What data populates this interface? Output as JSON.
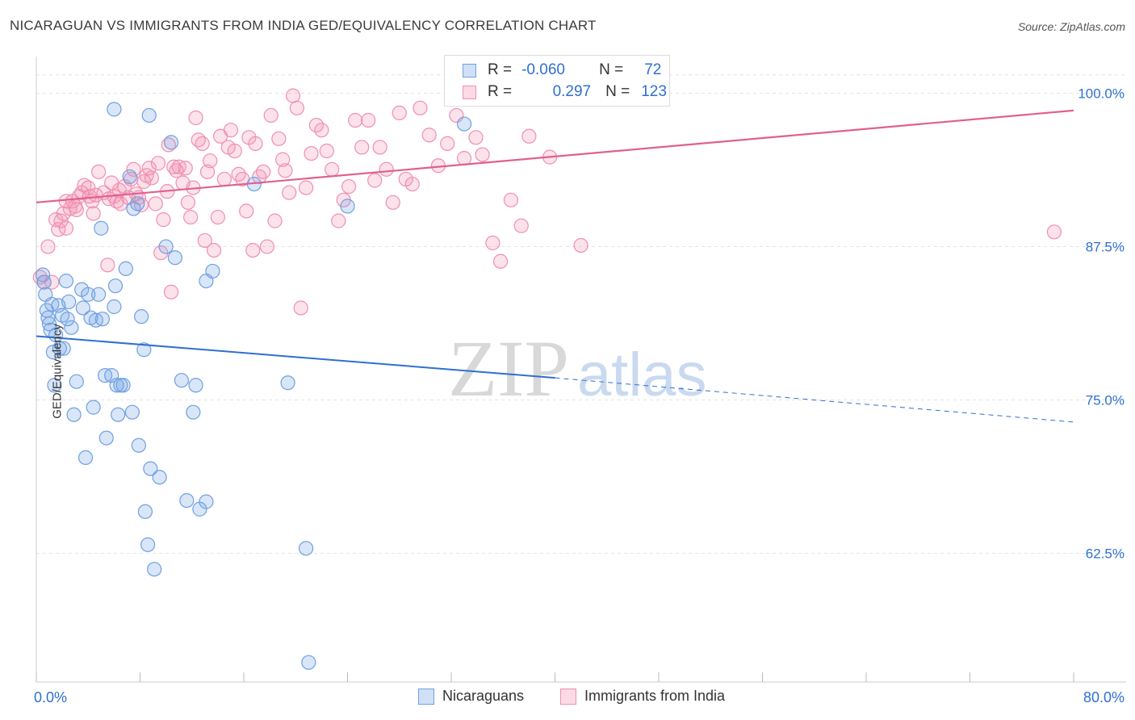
{
  "title": "NICARAGUAN VS IMMIGRANTS FROM INDIA GED/EQUIVALENCY CORRELATION CHART",
  "source": "Source: ZipAtlas.com",
  "watermark": {
    "zip": "ZIP",
    "atlas": "atlas"
  },
  "legend": {
    "row1": {
      "r_label": "R =",
      "r_value": "-0.060",
      "n_label": "N =",
      "n_value": "72"
    },
    "row2": {
      "r_label": "R =",
      "r_value": "0.297",
      "n_label": "N =",
      "n_value": "123"
    }
  },
  "bottom_legend": {
    "series1": "Nicaraguans",
    "series2": "Immigrants from India"
  },
  "colors": {
    "blue": "#6fa0e0",
    "blue_fill": "rgba(120,165,230,0.28)",
    "blue_line": "#2f6fd0",
    "pink": "#ef8fb0",
    "pink_fill": "rgba(245,150,180,0.28)",
    "pink_line": "#e0608e",
    "axis_text": "#2f6fd0"
  },
  "chart_data": {
    "type": "scatter",
    "title": "NICARAGUAN VS IMMIGRANTS FROM INDIA GED/EQUIVALENCY CORRELATION CHART",
    "xlabel": "",
    "ylabel": "GED/Equivalency",
    "xlim": [
      0,
      80
    ],
    "ylim": [
      52,
      103
    ],
    "x_tick_labels": [
      "0.0%",
      "80.0%"
    ],
    "y_ticks": [
      62.5,
      75.0,
      87.5,
      100.0
    ],
    "y_tick_labels": [
      "62.5%",
      "75.0%",
      "87.5%",
      "100.0%"
    ],
    "series": [
      {
        "name": "Nicaraguans",
        "R": -0.06,
        "N": 72,
        "trend": {
          "x0": 0,
          "y0": 80.2,
          "x1": 40,
          "y1": 76.8,
          "dashed_to_x": 80,
          "dashed_y1": 73.2
        },
        "points": [
          [
            0.5,
            85.2
          ],
          [
            0.6,
            84.6
          ],
          [
            0.7,
            83.6
          ],
          [
            0.8,
            82.3
          ],
          [
            0.9,
            81.7
          ],
          [
            1.0,
            81.2
          ],
          [
            1.1,
            80.7
          ],
          [
            1.2,
            82.8
          ],
          [
            1.3,
            78.9
          ],
          [
            1.4,
            76.2
          ],
          [
            1.5,
            80.3
          ],
          [
            1.7,
            82.7
          ],
          [
            1.8,
            79.2
          ],
          [
            2.0,
            81.9
          ],
          [
            2.1,
            79.2
          ],
          [
            2.3,
            84.7
          ],
          [
            2.4,
            81.6
          ],
          [
            2.5,
            83.0
          ],
          [
            2.7,
            80.9
          ],
          [
            2.9,
            73.8
          ],
          [
            3.1,
            76.5
          ],
          [
            3.5,
            84.0
          ],
          [
            3.6,
            82.5
          ],
          [
            3.8,
            70.3
          ],
          [
            4.0,
            83.6
          ],
          [
            4.2,
            81.7
          ],
          [
            4.4,
            74.4
          ],
          [
            4.6,
            81.5
          ],
          [
            4.8,
            83.6
          ],
          [
            5.0,
            89.0
          ],
          [
            5.1,
            81.6
          ],
          [
            5.4,
            71.9
          ],
          [
            5.3,
            77.0
          ],
          [
            5.8,
            77.0
          ],
          [
            6.0,
            82.6
          ],
          [
            6.1,
            84.3
          ],
          [
            6.2,
            76.2
          ],
          [
            6.3,
            73.8
          ],
          [
            6.5,
            76.2
          ],
          [
            6.7,
            76.2
          ],
          [
            6.9,
            85.7
          ],
          [
            7.2,
            93.2
          ],
          [
            7.5,
            90.6
          ],
          [
            7.4,
            74.0
          ],
          [
            7.8,
            91.0
          ],
          [
            7.9,
            71.3
          ],
          [
            8.1,
            81.8
          ],
          [
            8.3,
            79.1
          ],
          [
            8.4,
            65.9
          ],
          [
            8.6,
            63.2
          ],
          [
            8.8,
            69.4
          ],
          [
            9.1,
            61.2
          ],
          [
            9.5,
            68.7
          ],
          [
            10.0,
            87.5
          ],
          [
            10.7,
            86.6
          ],
          [
            11.2,
            76.6
          ],
          [
            11.6,
            66.8
          ],
          [
            12.1,
            74.0
          ],
          [
            12.3,
            76.2
          ],
          [
            12.6,
            66.1
          ],
          [
            13.1,
            66.7
          ],
          [
            13.1,
            84.7
          ],
          [
            13.6,
            85.5
          ],
          [
            16.8,
            92.6
          ],
          [
            19.4,
            76.4
          ],
          [
            20.8,
            62.9
          ],
          [
            21.0,
            53.6
          ],
          [
            24.0,
            90.8
          ],
          [
            8.7,
            98.2
          ],
          [
            6.0,
            98.7
          ],
          [
            10.4,
            96.0
          ],
          [
            33.0,
            97.5
          ]
        ]
      },
      {
        "name": "Immigrants from India",
        "R": 0.297,
        "N": 123,
        "trend": {
          "x0": 0,
          "y0": 91.1,
          "x1": 80,
          "y1": 98.6
        },
        "points": [
          [
            0.3,
            85.0
          ],
          [
            0.6,
            84.6
          ],
          [
            0.9,
            87.5
          ],
          [
            1.2,
            84.6
          ],
          [
            1.5,
            89.7
          ],
          [
            1.7,
            88.9
          ],
          [
            1.9,
            89.6
          ],
          [
            2.1,
            90.2
          ],
          [
            2.3,
            91.2
          ],
          [
            2.3,
            89.0
          ],
          [
            2.6,
            90.6
          ],
          [
            2.8,
            91.2
          ],
          [
            3.0,
            90.8
          ],
          [
            3.1,
            90.5
          ],
          [
            3.3,
            91.6
          ],
          [
            3.5,
            91.9
          ],
          [
            3.7,
            92.5
          ],
          [
            4.0,
            92.3
          ],
          [
            4.1,
            91.6
          ],
          [
            4.3,
            91.2
          ],
          [
            4.4,
            90.2
          ],
          [
            4.6,
            91.7
          ],
          [
            4.8,
            93.6
          ],
          [
            5.2,
            91.9
          ],
          [
            5.5,
            86.0
          ],
          [
            5.6,
            91.4
          ],
          [
            5.8,
            92.7
          ],
          [
            6.0,
            91.6
          ],
          [
            6.2,
            91.2
          ],
          [
            6.4,
            92.1
          ],
          [
            6.5,
            91.0
          ],
          [
            6.8,
            92.4
          ],
          [
            7.1,
            91.5
          ],
          [
            7.3,
            93.0
          ],
          [
            7.5,
            93.8
          ],
          [
            7.7,
            91.8
          ],
          [
            7.9,
            91.5
          ],
          [
            8.1,
            90.9
          ],
          [
            8.3,
            92.8
          ],
          [
            8.5,
            93.3
          ],
          [
            8.7,
            93.9
          ],
          [
            8.9,
            93.1
          ],
          [
            9.2,
            91.0
          ],
          [
            9.4,
            94.3
          ],
          [
            9.6,
            87.0
          ],
          [
            9.8,
            89.7
          ],
          [
            10.1,
            92.0
          ],
          [
            10.2,
            95.8
          ],
          [
            10.4,
            83.8
          ],
          [
            10.6,
            94.0
          ],
          [
            10.8,
            93.7
          ],
          [
            11.0,
            94.0
          ],
          [
            11.3,
            92.7
          ],
          [
            11.5,
            93.9
          ],
          [
            11.7,
            91.1
          ],
          [
            11.9,
            89.9
          ],
          [
            12.1,
            92.3
          ],
          [
            12.3,
            98.0
          ],
          [
            12.5,
            96.2
          ],
          [
            12.8,
            95.9
          ],
          [
            13.0,
            88.0
          ],
          [
            13.2,
            93.6
          ],
          [
            13.4,
            94.5
          ],
          [
            13.7,
            87.2
          ],
          [
            14.0,
            89.9
          ],
          [
            14.2,
            96.5
          ],
          [
            14.5,
            93.0
          ],
          [
            14.8,
            95.6
          ],
          [
            15.0,
            97.0
          ],
          [
            15.3,
            95.3
          ],
          [
            15.6,
            93.4
          ],
          [
            15.9,
            93.0
          ],
          [
            16.2,
            90.4
          ],
          [
            16.4,
            96.4
          ],
          [
            16.7,
            87.2
          ],
          [
            16.9,
            95.9
          ],
          [
            17.2,
            93.2
          ],
          [
            17.5,
            93.6
          ],
          [
            17.8,
            87.5
          ],
          [
            18.1,
            98.2
          ],
          [
            18.4,
            89.6
          ],
          [
            18.7,
            96.3
          ],
          [
            19.0,
            94.6
          ],
          [
            19.2,
            93.7
          ],
          [
            19.5,
            91.9
          ],
          [
            19.8,
            99.8
          ],
          [
            20.1,
            98.8
          ],
          [
            20.4,
            82.5
          ],
          [
            20.8,
            92.3
          ],
          [
            21.2,
            95.1
          ],
          [
            21.6,
            97.4
          ],
          [
            22.0,
            97.0
          ],
          [
            22.4,
            95.3
          ],
          [
            22.8,
            93.8
          ],
          [
            23.3,
            89.6
          ],
          [
            23.7,
            91.3
          ],
          [
            24.1,
            92.4
          ],
          [
            24.6,
            97.8
          ],
          [
            25.1,
            95.6
          ],
          [
            25.6,
            97.8
          ],
          [
            26.1,
            92.9
          ],
          [
            26.5,
            95.6
          ],
          [
            27.0,
            93.8
          ],
          [
            27.5,
            91.1
          ],
          [
            28.0,
            98.4
          ],
          [
            28.5,
            93.0
          ],
          [
            29.0,
            92.6
          ],
          [
            29.6,
            98.8
          ],
          [
            30.3,
            96.6
          ],
          [
            31.0,
            94.1
          ],
          [
            31.7,
            95.9
          ],
          [
            32.4,
            98.2
          ],
          [
            33.0,
            94.7
          ],
          [
            33.9,
            96.4
          ],
          [
            34.4,
            95.0
          ],
          [
            35.2,
            87.8
          ],
          [
            35.8,
            86.3
          ],
          [
            36.6,
            91.3
          ],
          [
            37.4,
            89.2
          ],
          [
            38.0,
            96.5
          ],
          [
            39.6,
            94.8
          ],
          [
            42.0,
            87.6
          ],
          [
            78.5,
            88.7
          ]
        ]
      }
    ]
  }
}
